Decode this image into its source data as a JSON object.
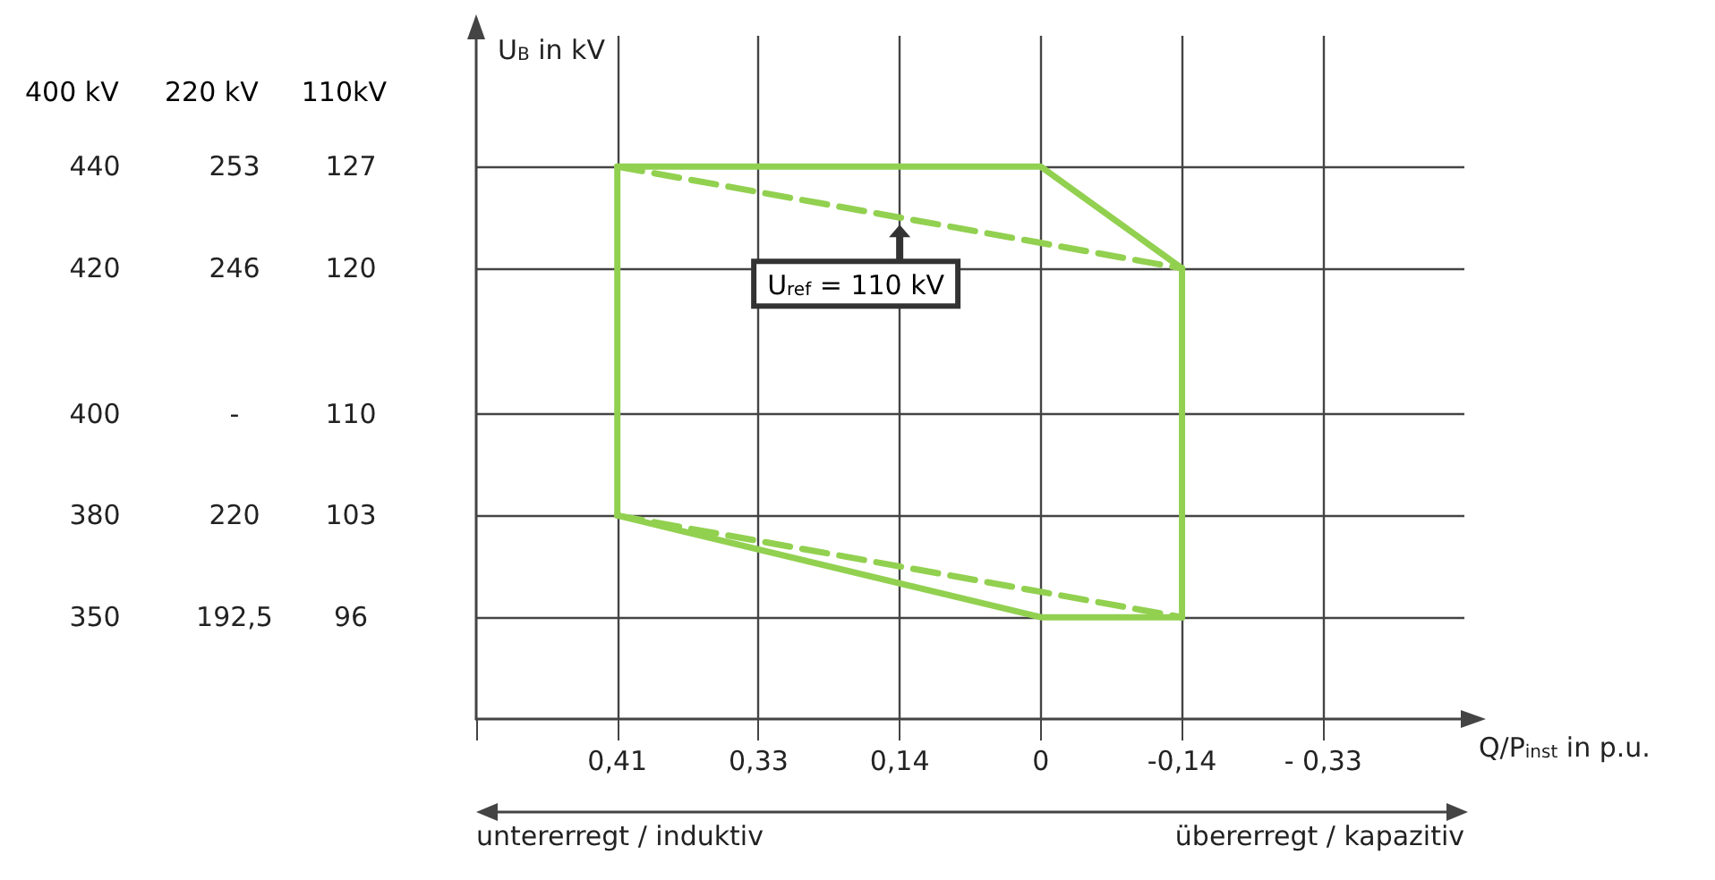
{
  "chart_data": {
    "type": "line",
    "xlabel": "Q/P$_{inst}$ in p.u.",
    "ylabel": "U$_{B}$ in kV",
    "categories": [
      null,
      "0,41",
      "0,33",
      "0,14",
      "0",
      "-0,14",
      "- 0,33",
      null
    ],
    "series": [
      {
        "color": "#92d050",
        "line_style": "solid",
        "x": [
          "0,41",
          "0",
          "-0,14"
        ],
        "values": [
          127,
          127,
          120
        ]
      },
      {
        "color": "#92d050",
        "line_style": "solid",
        "x": [
          "0,41",
          "0",
          "-0,14"
        ],
        "values": [
          103,
          96,
          96
        ]
      },
      {
        "color": "#92d050",
        "line_style": "solid",
        "x": [
          "0,41",
          "0,41"
        ],
        "values": [
          127,
          103
        ]
      },
      {
        "color": "#92d050",
        "line_style": "solid",
        "x": [
          "-0,14",
          "-0,14"
        ],
        "values": [
          120,
          96
        ]
      },
      {
        "color": "#92d050",
        "line_style": "dashed",
        "x": [
          "0,41",
          "-0,14"
        ],
        "values": [
          127,
          120
        ]
      },
      {
        "color": "#92d050",
        "line_style": "dashed",
        "x": [
          "0,41",
          "-0,14"
        ],
        "values": [
          103,
          96
        ]
      }
    ],
    "ylim": [
      89,
      136
    ],
    "yticks": [
      96,
      103,
      110,
      120,
      127
    ],
    "annotations": [
      "400 kV  220 kV  110kV",
      "440",
      "420",
      "400",
      "380",
      "350",
      "253",
      "246",
      "-",
      "220",
      "192,5",
      {
        "text": "U$_{ref}$ = 110 kV",
        "x": "0,14",
        "y": 123
      },
      "untererregt / induktiv",
      "übererregt / kapazitiv"
    ],
    "grid": true,
    "marker": "none"
  }
}
